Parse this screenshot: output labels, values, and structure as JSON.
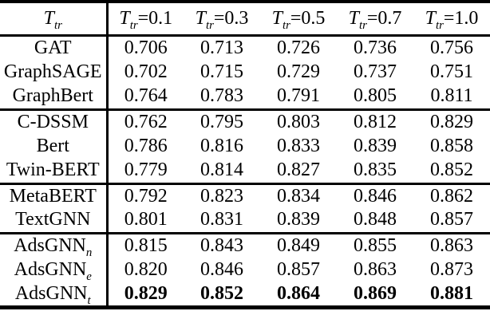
{
  "colors": {
    "text": "#000000",
    "background": "#ffffff",
    "rule": "#000000"
  },
  "table": {
    "corner": {
      "pre": "T",
      "sub": "tr",
      "post": ""
    },
    "columns": [
      {
        "pre": "T",
        "sub": "tr",
        "post": "=0.1"
      },
      {
        "pre": "T",
        "sub": "tr",
        "post": "=0.3"
      },
      {
        "pre": "T",
        "sub": "tr",
        "post": "=0.5"
      },
      {
        "pre": "T",
        "sub": "tr",
        "post": "=0.7"
      },
      {
        "pre": "T",
        "sub": "tr",
        "post": "=1.0"
      }
    ],
    "groups": [
      {
        "name": "graph-models",
        "rows": [
          {
            "label": "GAT",
            "label_sub": "",
            "bold": false,
            "values": [
              "0.706",
              "0.713",
              "0.726",
              "0.736",
              "0.756"
            ]
          },
          {
            "label": "GraphSAGE",
            "label_sub": "",
            "bold": false,
            "values": [
              "0.702",
              "0.715",
              "0.729",
              "0.737",
              "0.751"
            ]
          },
          {
            "label": "GraphBert",
            "label_sub": "",
            "bold": false,
            "values": [
              "0.764",
              "0.783",
              "0.791",
              "0.805",
              "0.811"
            ]
          }
        ]
      },
      {
        "name": "text-models",
        "rows": [
          {
            "label": "C-DSSM",
            "label_sub": "",
            "bold": false,
            "values": [
              "0.762",
              "0.795",
              "0.803",
              "0.812",
              "0.829"
            ]
          },
          {
            "label": "Bert",
            "label_sub": "",
            "bold": false,
            "values": [
              "0.786",
              "0.816",
              "0.833",
              "0.839",
              "0.858"
            ]
          },
          {
            "label": "Twin-BERT",
            "label_sub": "",
            "bold": false,
            "values": [
              "0.779",
              "0.814",
              "0.827",
              "0.835",
              "0.852"
            ]
          }
        ]
      },
      {
        "name": "hybrid-models",
        "rows": [
          {
            "label": "MetaBERT",
            "label_sub": "",
            "bold": false,
            "values": [
              "0.792",
              "0.823",
              "0.834",
              "0.846",
              "0.862"
            ]
          },
          {
            "label": "TextGNN",
            "label_sub": "",
            "bold": false,
            "values": [
              "0.801",
              "0.831",
              "0.839",
              "0.848",
              "0.857"
            ]
          }
        ]
      },
      {
        "name": "adsgnn-variants",
        "rows": [
          {
            "label": "AdsGNN",
            "label_sub": "n",
            "bold": false,
            "values": [
              "0.815",
              "0.843",
              "0.849",
              "0.855",
              "0.863"
            ]
          },
          {
            "label": "AdsGNN",
            "label_sub": "e",
            "bold": false,
            "values": [
              "0.820",
              "0.846",
              "0.857",
              "0.863",
              "0.873"
            ]
          },
          {
            "label": "AdsGNN",
            "label_sub": "t",
            "bold": true,
            "values": [
              "0.829",
              "0.852",
              "0.864",
              "0.869",
              "0.881"
            ]
          }
        ]
      }
    ]
  }
}
